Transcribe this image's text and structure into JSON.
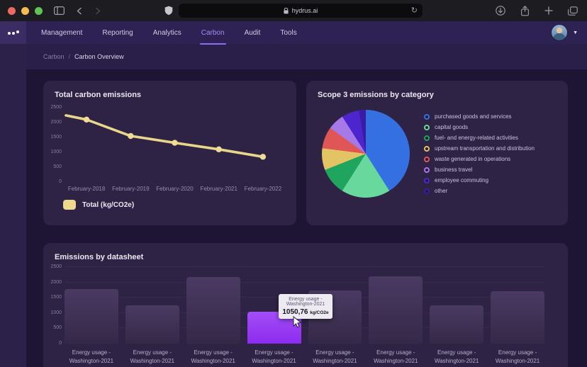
{
  "browser": {
    "url_host": "hydrus.ai",
    "icons": [
      "window-close",
      "window-minimize",
      "window-zoom",
      "sidebar-toggle",
      "back",
      "forward",
      "privacy-shield",
      "lock",
      "reload",
      "downloads",
      "share",
      "new-tab",
      "tab-overview"
    ]
  },
  "navbar": {
    "items": [
      {
        "label": "Management",
        "active": false
      },
      {
        "label": "Reporting",
        "active": false
      },
      {
        "label": "Analytics",
        "active": false
      },
      {
        "label": "Carbon",
        "active": true
      },
      {
        "label": "Audit",
        "active": false
      },
      {
        "label": "Tools",
        "active": false
      }
    ]
  },
  "breadcrumb": {
    "parent": "Carbon",
    "separator": "/",
    "current": "Carbon Overview"
  },
  "chart_data": [
    {
      "type": "line",
      "title": "Total carbon emissions",
      "categories": [
        "February-2018",
        "February-2019",
        "February-2020",
        "February-2021",
        "February-2022"
      ],
      "values": [
        2100,
        1550,
        1320,
        1100,
        850
      ],
      "lead_in_value": 2240,
      "yticks": [
        2500,
        2000,
        1500,
        1000,
        500,
        0
      ],
      "ylim": [
        0,
        2500
      ],
      "grid": false,
      "line_color": "#e8d68a",
      "point_color": "#f0dd95",
      "legend_position": "bottom-left",
      "legend": [
        {
          "label": "Total (kg/CO2e)",
          "color": "#eed98e"
        }
      ]
    },
    {
      "type": "pie",
      "title": "Scope 3 emissions by category",
      "legend_position": "right",
      "slices": [
        {
          "label": "purchased goods and services",
          "value": 41,
          "color": "#3470e2"
        },
        {
          "label": "capital goods",
          "value": 18,
          "color": "#68d89d"
        },
        {
          "label": "fuel- and energy-related activities",
          "value": 10,
          "color": "#1fa55d"
        },
        {
          "label": "upstream transportation and distribution",
          "value": 8,
          "color": "#e2c464"
        },
        {
          "label": "waste generated in operations",
          "value": 8,
          "color": "#e05656"
        },
        {
          "label": "business travel",
          "value": 6,
          "color": "#a678e8"
        },
        {
          "label": "employee commuting",
          "value": 6.5,
          "color": "#4c25cd"
        },
        {
          "label": "other",
          "value": 2.5,
          "color": "#3a1ba6"
        }
      ]
    },
    {
      "type": "bar",
      "title": "Emissions by datasheet",
      "yticks": [
        2500,
        2000,
        1500,
        1000,
        500,
        0
      ],
      "ylim": [
        0,
        2500
      ],
      "grid": true,
      "bar_color": "#463459",
      "highlight_color": "#9438f5",
      "items": [
        {
          "label_lines": [
            "Energy usage -",
            "Washington-2021"
          ],
          "value": 1780,
          "highlighted": false
        },
        {
          "label_lines": [
            "Energy usage -",
            "Washington-2021"
          ],
          "value": 1260,
          "highlighted": false
        },
        {
          "label_lines": [
            "Energy usage -",
            "Washington-2021"
          ],
          "value": 2180,
          "highlighted": false
        },
        {
          "label_lines": [
            "Energy usage -",
            "Washington-2021"
          ],
          "value": 1050.76,
          "highlighted": true
        },
        {
          "label_lines": [
            "Energy usage -",
            "Washington-2021"
          ],
          "value": 1740,
          "highlighted": false
        },
        {
          "label_lines": [
            "Energy usage -",
            "Washington-2021"
          ],
          "value": 2200,
          "highlighted": false
        },
        {
          "label_lines": [
            "Energy usage -",
            "Washington-2021"
          ],
          "value": 1260,
          "highlighted": false
        },
        {
          "label_lines": [
            "Energy usage -",
            "Washington-2021"
          ],
          "value": 1720,
          "highlighted": false
        }
      ],
      "tooltip": {
        "line1": "Energy usage -",
        "line2": "Washington-2021",
        "value": "1050,76",
        "unit": "kg/CO2e",
        "target_index": 3
      }
    }
  ]
}
